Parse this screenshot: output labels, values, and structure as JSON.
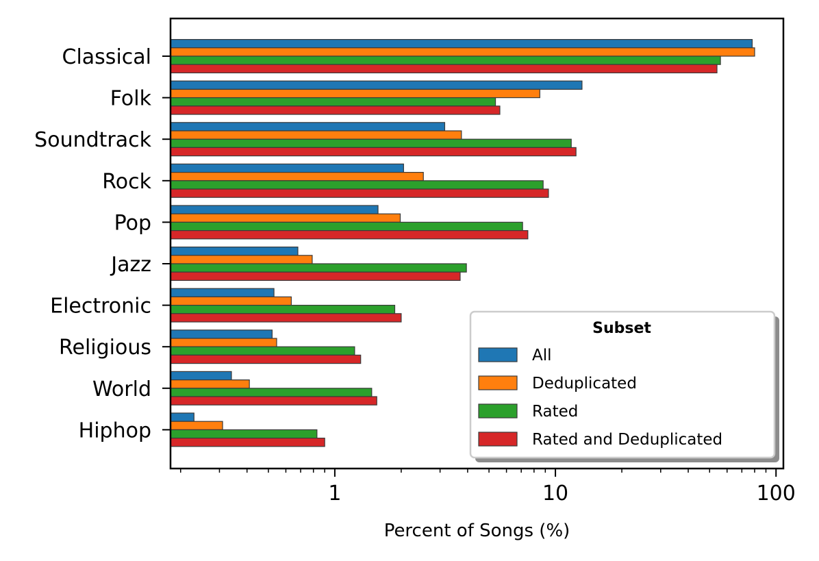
{
  "chart_data": {
    "type": "bar",
    "orientation": "horizontal",
    "xscale": "log",
    "xlim": [
      0.18,
      108
    ],
    "xlabel": "Percent of Songs (%)",
    "xtick_labels": [
      "1",
      "10",
      "100"
    ],
    "grid": false,
    "legend": {
      "title": "Subset",
      "placement": "lower-right"
    },
    "categories": [
      "Classical",
      "Folk",
      "Soundtrack",
      "Rock",
      "Pop",
      "Jazz",
      "Electronic",
      "Religious",
      "World",
      "Hiphop"
    ],
    "series": [
      {
        "name": "All",
        "color": "#1f77b4",
        "values": [
          78,
          13.2,
          3.15,
          2.05,
          1.57,
          0.68,
          0.53,
          0.52,
          0.34,
          0.23
        ]
      },
      {
        "name": "Deduplicated",
        "color": "#ff7f0e",
        "values": [
          80,
          8.5,
          3.75,
          2.52,
          1.98,
          0.79,
          0.635,
          0.545,
          0.41,
          0.31
        ]
      },
      {
        "name": "Rated",
        "color": "#2ca02c",
        "values": [
          56,
          5.35,
          11.8,
          8.8,
          7.1,
          3.95,
          1.87,
          1.23,
          1.47,
          0.83
        ]
      },
      {
        "name": "Rated and Deduplicated",
        "color": "#d62728",
        "values": [
          54,
          5.6,
          12.4,
          9.3,
          7.5,
          3.7,
          2.0,
          1.31,
          1.55,
          0.9
        ]
      }
    ]
  }
}
